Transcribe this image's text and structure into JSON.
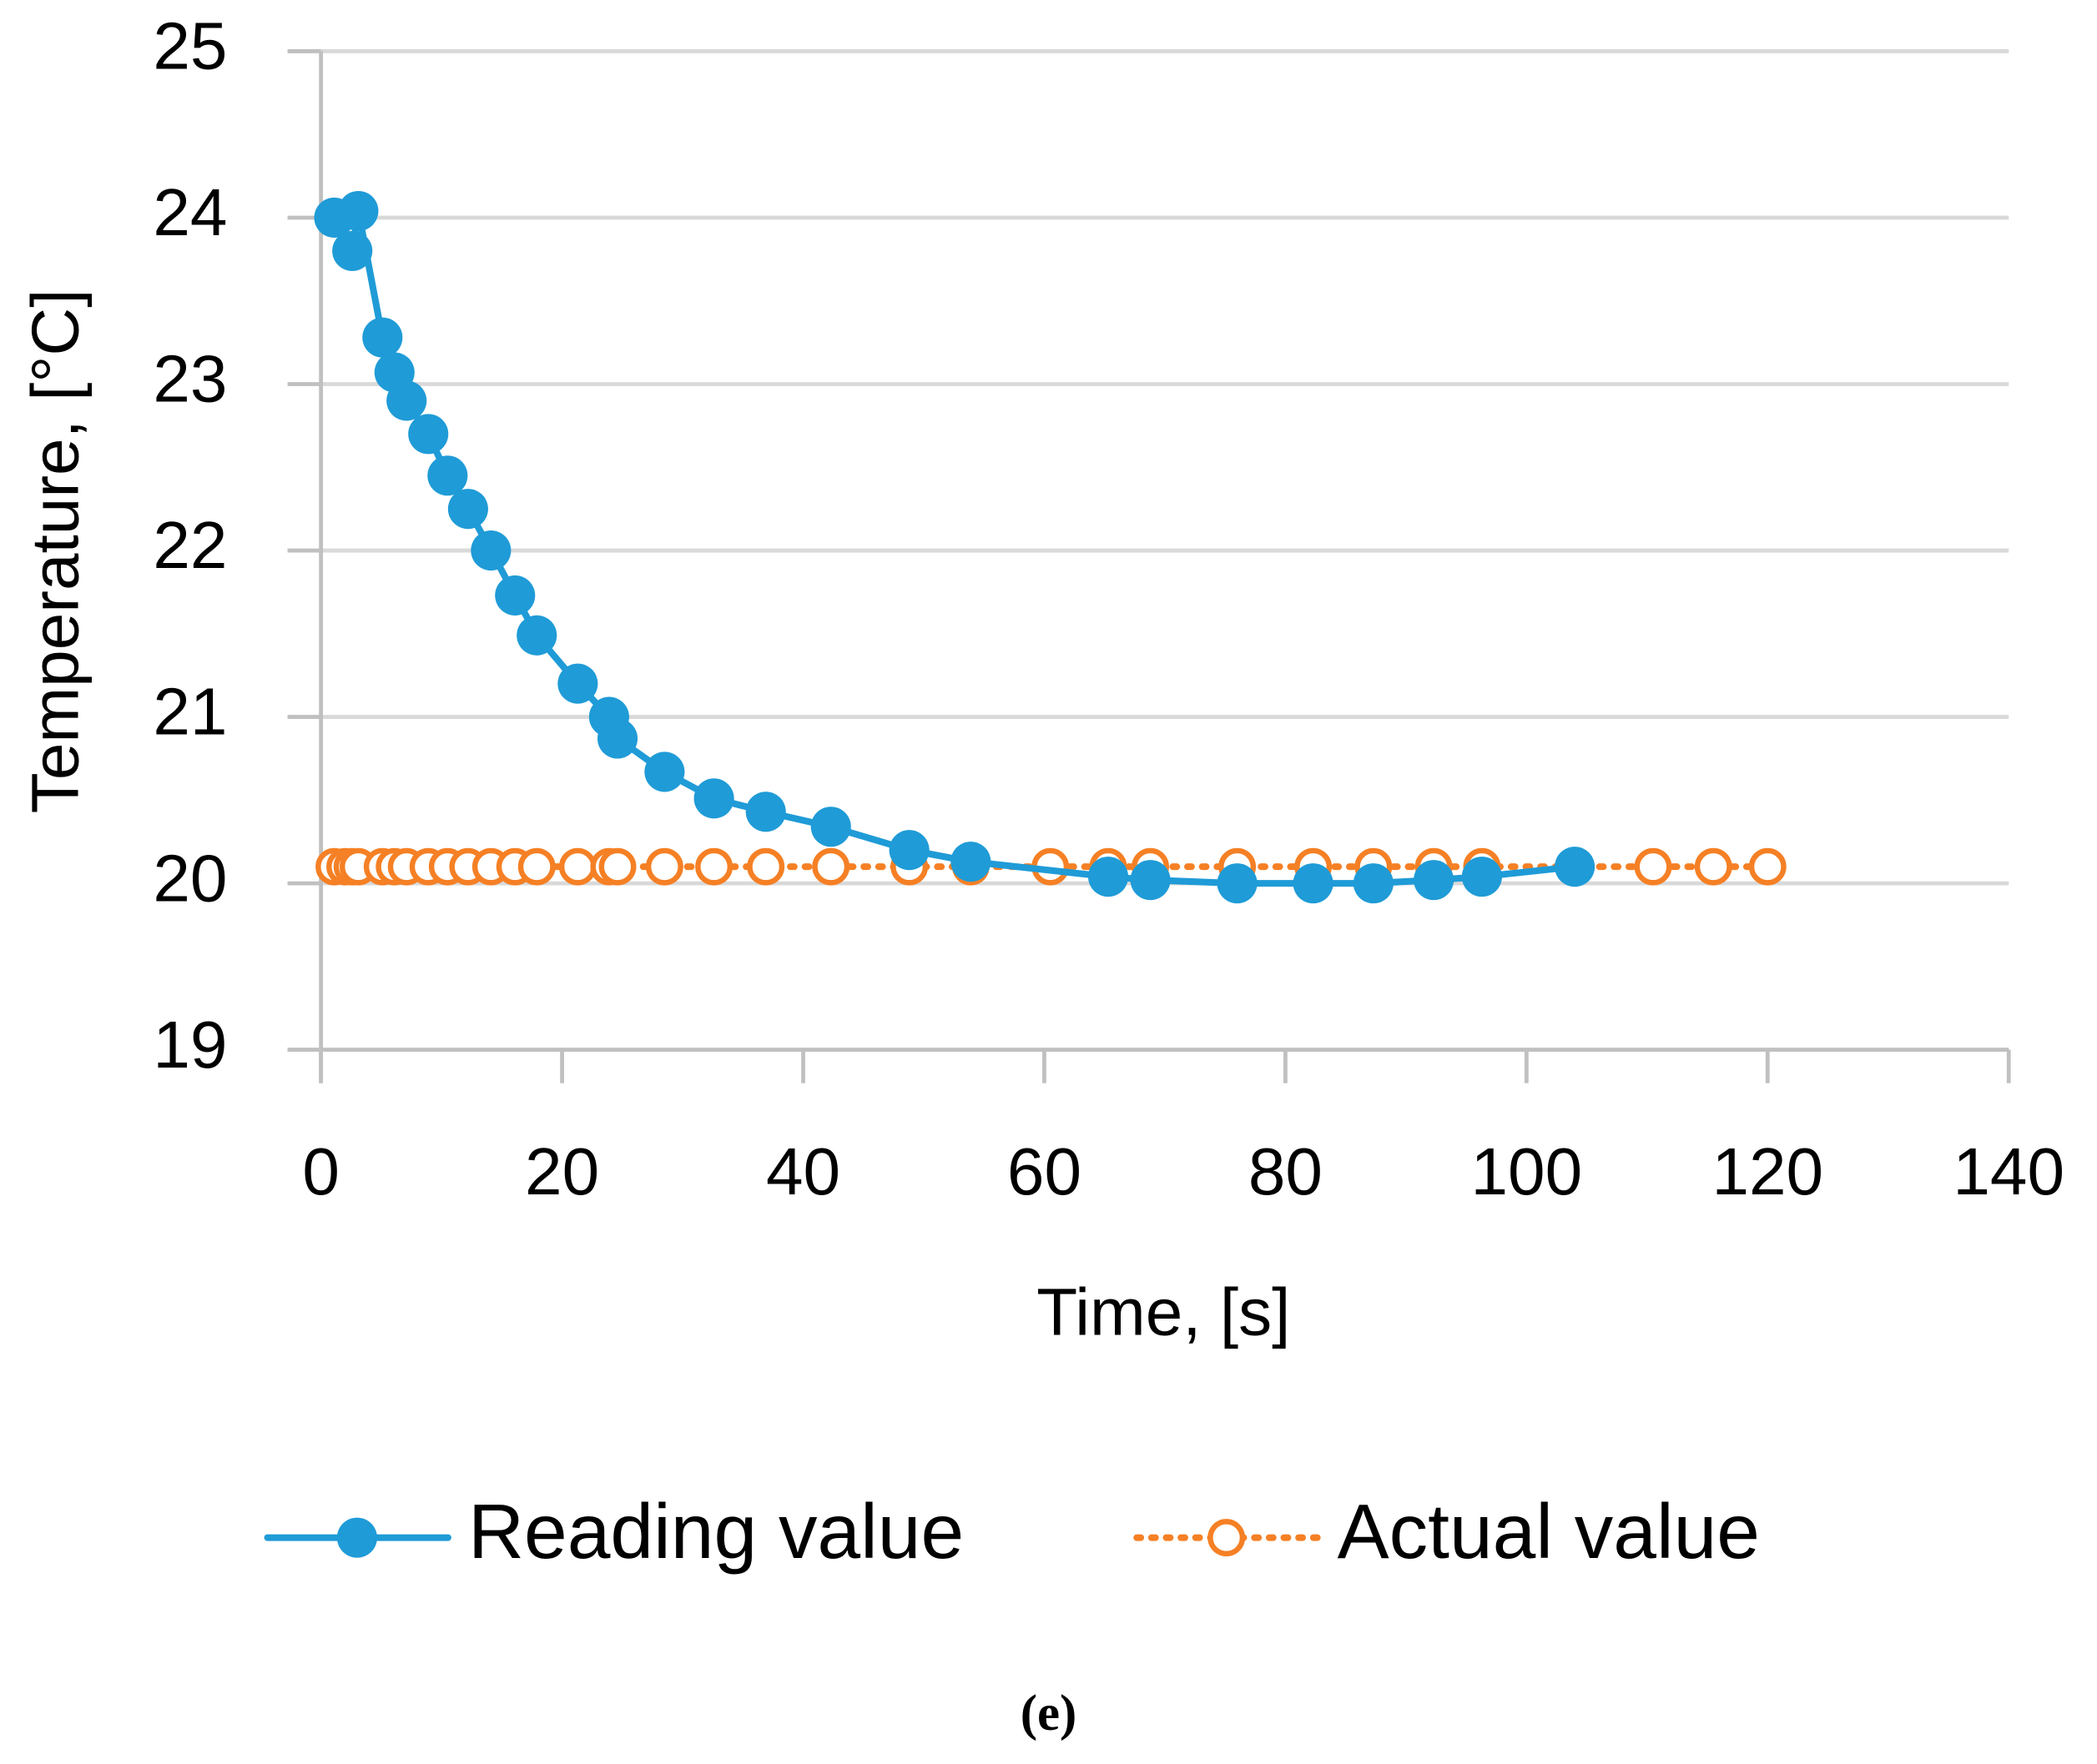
{
  "chart_data": {
    "type": "line",
    "x_label": "Time, [s]",
    "y_label": "Temperature, [°C]",
    "caption": "(e)",
    "xlim": [
      0,
      140
    ],
    "xticks": [
      0,
      20,
      40,
      60,
      80,
      100,
      120,
      140
    ],
    "ylim": [
      19,
      25
    ],
    "yticks": [
      19,
      20,
      21,
      22,
      23,
      24,
      25
    ],
    "grid": true,
    "legend": "bottom",
    "series": [
      {
        "name": "Reading value",
        "color": "#1f9bd7",
        "marker": "filled",
        "line_style": "solid",
        "x": [
          1.1,
          2.6,
          3.1,
          5.1,
          6.1,
          7.1,
          8.9,
          10.5,
          12.2,
          14.1,
          16.1,
          17.9,
          21.3,
          23.9,
          24.6,
          28.5,
          32.6,
          36.9,
          42.3,
          48.8,
          53.9,
          65.3,
          68.8,
          76,
          82.3,
          87.3,
          92.3,
          96.3,
          104
        ],
        "values": [
          24.0,
          23.8,
          24.04,
          23.28,
          23.07,
          22.9,
          22.7,
          22.45,
          22.25,
          22.0,
          21.73,
          21.49,
          21.2,
          21.0,
          20.87,
          20.67,
          20.51,
          20.43,
          20.34,
          20.2,
          20.13,
          20.04,
          20.02,
          20.0,
          20.0,
          20.0,
          20.02,
          20.04,
          20.1
        ]
      },
      {
        "name": "Actual value",
        "color": "#f58025",
        "marker": "open",
        "line_style": "dotted",
        "x": [
          1.1,
          2.0,
          2.6,
          3.1,
          5.1,
          6.1,
          7.1,
          8.9,
          10.5,
          12.2,
          14.1,
          16.1,
          17.9,
          21.3,
          23.9,
          24.6,
          28.5,
          32.6,
          36.9,
          42.3,
          48.8,
          53.9,
          60.5,
          65.3,
          68.8,
          76,
          82.3,
          87.3,
          92.3,
          96.3,
          104,
          110.5,
          115.5,
          120
        ],
        "values": [
          20.1,
          20.1,
          20.1,
          20.1,
          20.1,
          20.1,
          20.1,
          20.1,
          20.1,
          20.1,
          20.1,
          20.1,
          20.1,
          20.1,
          20.1,
          20.1,
          20.1,
          20.1,
          20.1,
          20.1,
          20.1,
          20.1,
          20.1,
          20.1,
          20.1,
          20.1,
          20.1,
          20.1,
          20.1,
          20.1,
          20.1,
          20.1,
          20.1,
          20.1
        ]
      }
    ]
  }
}
